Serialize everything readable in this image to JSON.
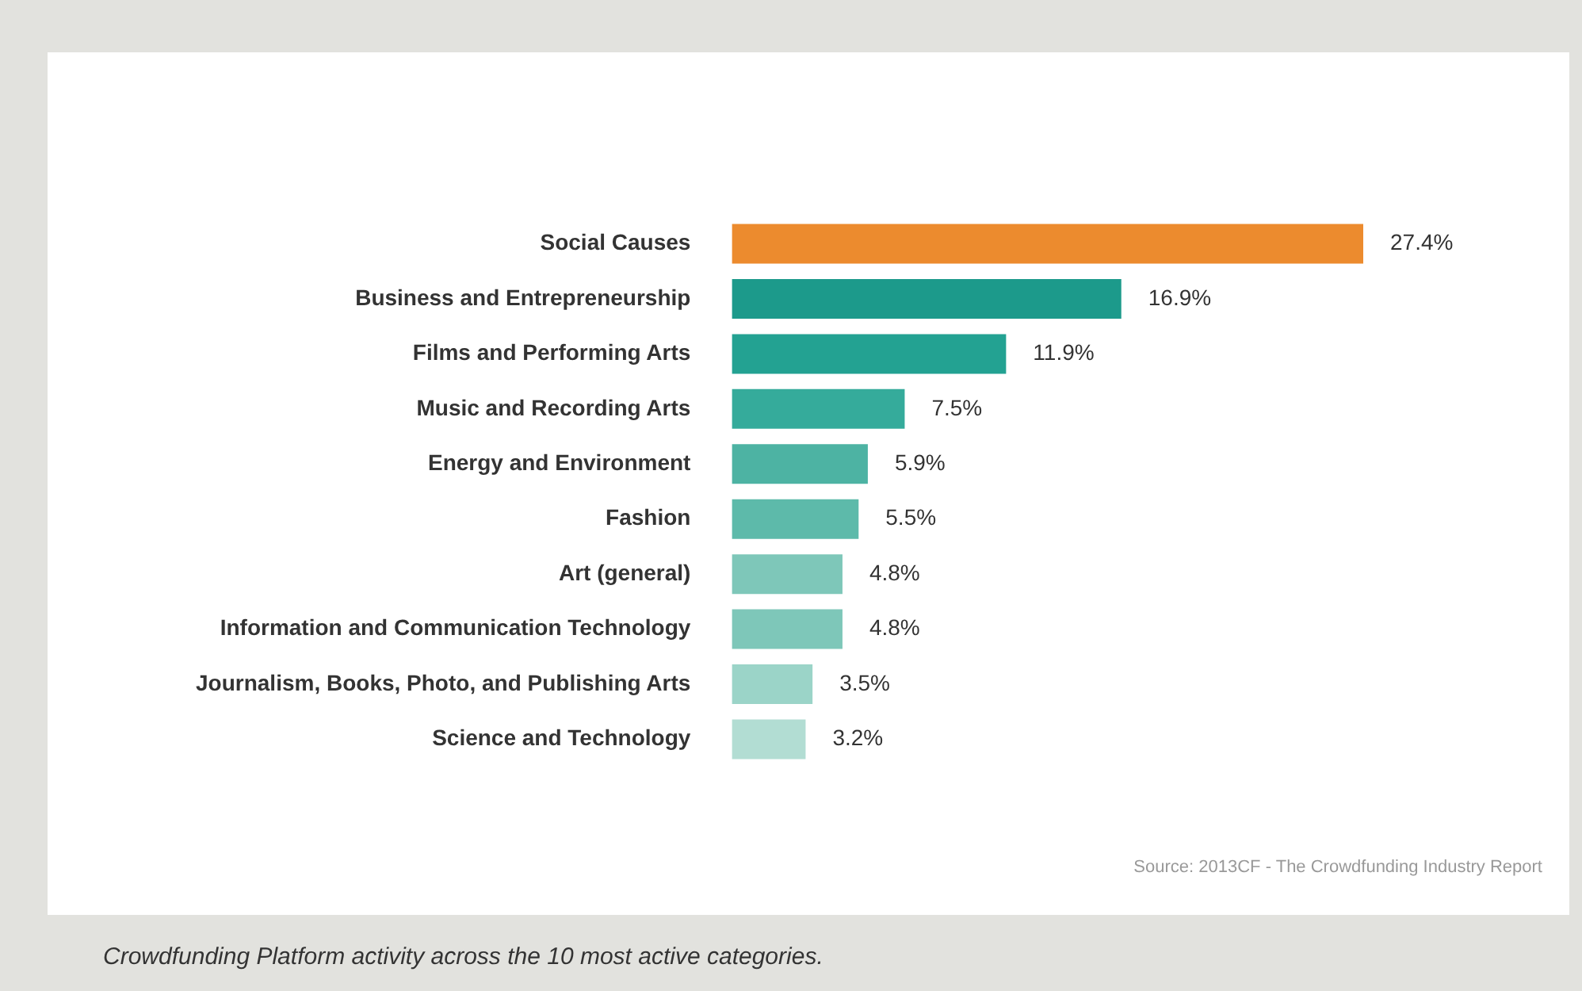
{
  "chart_data": {
    "type": "bar",
    "orientation": "horizontal",
    "categories": [
      "Social Causes",
      "Business and Entrepreneurship",
      "Films and Performing Arts",
      "Music and Recording Arts",
      "Energy and Environment",
      "Fashion",
      "Art (general)",
      "Information and Communication Technology",
      "Journalism, Books, Photo, and Publishing Arts",
      "Science and Technology"
    ],
    "values": [
      27.4,
      16.9,
      11.9,
      7.5,
      5.9,
      5.5,
      4.8,
      4.8,
      3.5,
      3.2
    ],
    "value_labels": [
      "27.4%",
      "16.9%",
      "11.9%",
      "7.5%",
      "5.9%",
      "5.5%",
      "4.8%",
      "4.8%",
      "3.5%",
      "3.2%"
    ],
    "colors": [
      "#ec8b2e",
      "#1c9a8b",
      "#23a292",
      "#35ab9b",
      "#4db3a3",
      "#5dbaaa",
      "#7ec7b9",
      "#7ec7b9",
      "#9bd4c8",
      "#b2ddd3"
    ],
    "annotations": [
      "Source: 2013CF - The Crowdfunding Industry Report",
      "Crowdfunding Platform activity across the 10 most active categories."
    ]
  }
}
